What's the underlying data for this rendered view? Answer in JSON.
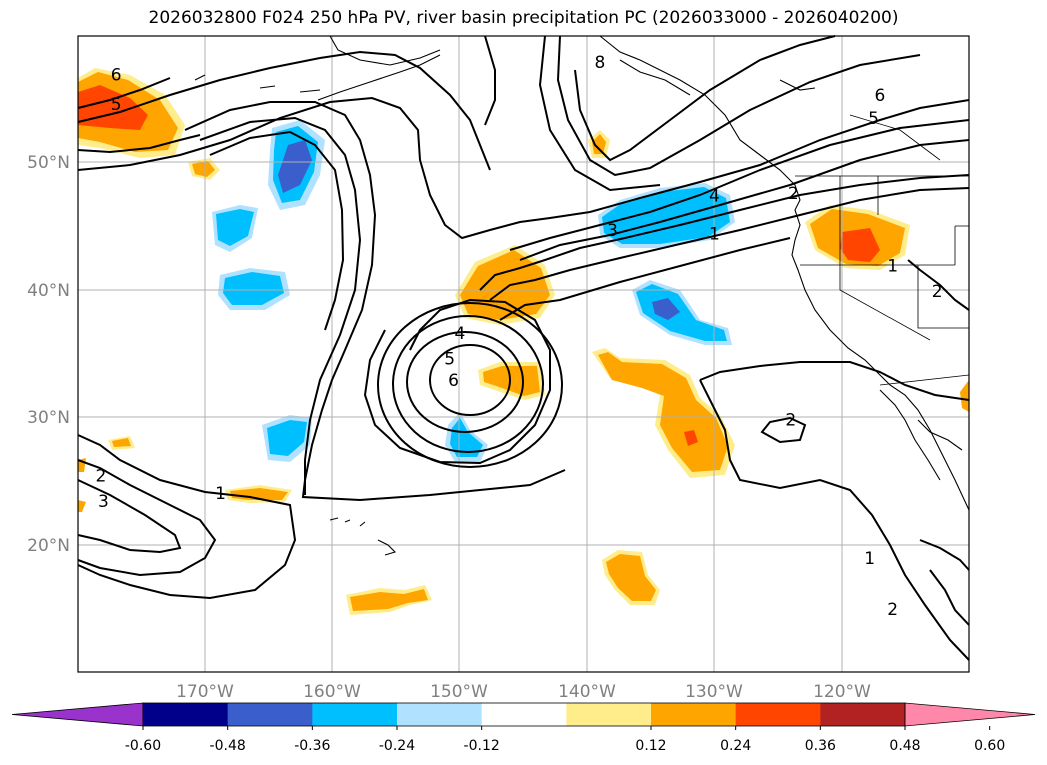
{
  "title": "2026032800 F024 250 hPa PV, river basin precipitation PC (2026033000 - 2026040200)",
  "axes": {
    "lon_labels": [
      "170°W",
      "160°W",
      "150°W",
      "140°W",
      "130°W",
      "120°W"
    ],
    "lat_labels": [
      "50°N",
      "40°N",
      "30°N",
      "20°N"
    ],
    "lon_range": [
      -180,
      -110
    ],
    "lat_range": [
      10,
      60
    ],
    "grid": true
  },
  "colorbar": {
    "ticks": [
      "-0.60",
      "-0.48",
      "-0.36",
      "-0.24",
      "-0.12",
      "0.12",
      "0.24",
      "0.36",
      "0.48",
      "0.60"
    ],
    "colors": [
      "#9933cc",
      "#00008b",
      "#3a5fcd",
      "#00bfff",
      "#b0e2ff",
      "#ffffff",
      "#ffec8b",
      "#ffa500",
      "#ff4500",
      "#b22222",
      "#ff88aa"
    ]
  },
  "contour_labels": [
    {
      "text": "6",
      "lon": -177,
      "lat": 56.8
    },
    {
      "text": "5",
      "lon": -177,
      "lat": 54.5
    },
    {
      "text": "4",
      "lon": -150,
      "lat": 36.5
    },
    {
      "text": "5",
      "lon": -150.8,
      "lat": 34.5
    },
    {
      "text": "6",
      "lon": -150.5,
      "lat": 32.8
    },
    {
      "text": "8",
      "lon": -139,
      "lat": 57.8
    },
    {
      "text": "6",
      "lon": -117,
      "lat": 55.2
    },
    {
      "text": "5",
      "lon": -117.5,
      "lat": 53.4
    },
    {
      "text": "4",
      "lon": -130,
      "lat": 47.3
    },
    {
      "text": "3",
      "lon": -138,
      "lat": 44.6
    },
    {
      "text": "1",
      "lon": -130,
      "lat": 44.3
    },
    {
      "text": "2",
      "lon": -123.8,
      "lat": 47.5
    },
    {
      "text": "2",
      "lon": -124,
      "lat": 29.7
    },
    {
      "text": "1",
      "lon": -168.8,
      "lat": 23.9
    },
    {
      "text": "2",
      "lon": -178.2,
      "lat": 25.3
    },
    {
      "text": "3",
      "lon": -178,
      "lat": 23.3
    },
    {
      "text": "1",
      "lon": -117.8,
      "lat": 18.8
    },
    {
      "text": "2",
      "lon": -116,
      "lat": 14.8
    },
    {
      "text": "1",
      "lon": -116,
      "lat": 41.8
    },
    {
      "text": "2",
      "lon": -112.5,
      "lat": 39.8
    }
  ]
}
